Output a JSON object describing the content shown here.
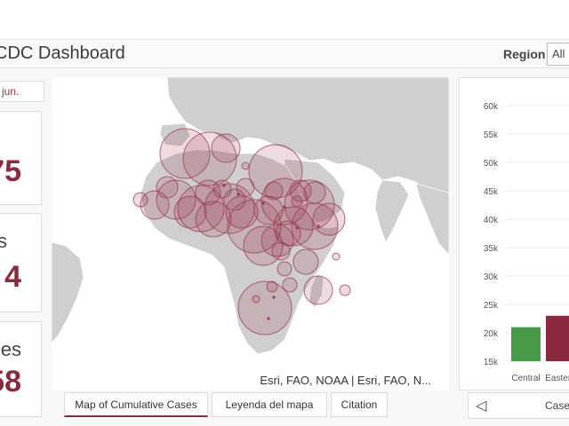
{
  "header": {
    "title": "CDC Dashboard",
    "region_label": "Region",
    "region_value": "All"
  },
  "sidebar": {
    "date_text": "jun.",
    "cards": [
      {
        "label": "",
        "value": "75"
      },
      {
        "label": "s",
        "value": "4"
      },
      {
        "label": "es",
        "value": "58"
      }
    ]
  },
  "map": {
    "attribution": "Esri, FAO, NOAA | Esri, FAO, N...",
    "bubble_color": "#9b3a4e",
    "land_color": "#cfcfcf",
    "water_color": "#ffffff"
  },
  "tabs": [
    {
      "label": "Map of Cumulative Cases",
      "active": true
    },
    {
      "label": "Leyenda del mapa",
      "active": false
    },
    {
      "label": "Citation",
      "active": false
    }
  ],
  "nav": {
    "prev_icon": "chevron-left-icon",
    "label": "Case"
  },
  "chart_data": {
    "type": "bar",
    "categories": [
      "Central",
      "Eastern"
    ],
    "values": [
      21000,
      23000
    ],
    "colors": [
      "#4a9a4a",
      "#8b2a3e"
    ],
    "ylim": [
      15000,
      60000
    ],
    "yticks": [
      "15k",
      "20k",
      "25k",
      "30k",
      "35k",
      "40k",
      "45k",
      "50k",
      "55k",
      "60k"
    ],
    "ytick_values": [
      15000,
      20000,
      25000,
      30000,
      35000,
      40000,
      45000,
      50000,
      55000,
      60000
    ],
    "grid": true
  }
}
